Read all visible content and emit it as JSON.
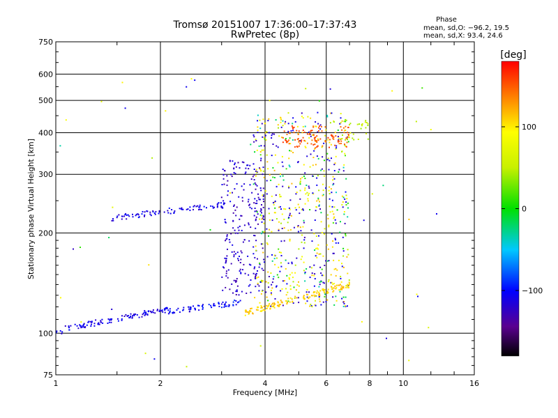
{
  "chart_data": {
    "type": "scatter",
    "title": "Tromsø 20151007 17:36:00–17:37:43",
    "subtitle": "RwPretec (8p)",
    "xlabel": "Frequency [MHz]",
    "ylabel": "Stationary phase Virtual Height [km]",
    "x_scale": "log",
    "y_scale": "log",
    "xlim": [
      1,
      16
    ],
    "ylim": [
      75,
      750
    ],
    "x_ticks": [
      "1",
      "2",
      "4",
      "6",
      "8",
      "10",
      "16"
    ],
    "y_ticks": [
      "75",
      "100",
      "200",
      "300",
      "400",
      "500",
      "600",
      "750"
    ],
    "grid": true,
    "phase_stats": {
      "heading": "Phase",
      "o_line": "mean, sd,O: −96.2, 19.5",
      "x_line": "mean, sd,X:  93.4, 24.6"
    },
    "colorbar": {
      "label": "[deg]",
      "range": [
        -180,
        180
      ],
      "ticks": [
        "100",
        "0",
        "−100"
      ]
    },
    "clusters": [
      {
        "name": "E low trace",
        "x": [
          1.0,
          2.1
        ],
        "y": [
          102,
          118
        ],
        "phase": -110,
        "n": 120,
        "shape": "curve"
      },
      {
        "name": "E rising trace",
        "x": [
          2.1,
          3.4
        ],
        "y": [
          116,
          124
        ],
        "phase": -100,
        "n": 70,
        "shape": "curve"
      },
      {
        "name": "F1 upper trace",
        "x": [
          1.45,
          3.2
        ],
        "y": [
          222,
          245
        ],
        "phase": -110,
        "n": 90,
        "shape": "curve"
      },
      {
        "name": "spread blue",
        "x": [
          3.0,
          4.0
        ],
        "y": [
          130,
          330
        ],
        "phase": -120,
        "n": 220,
        "shape": "box"
      },
      {
        "name": "spread mixed",
        "x": [
          3.7,
          7.0
        ],
        "y": [
          120,
          460
        ],
        "phase": "mixed",
        "n": 650,
        "shape": "box"
      },
      {
        "name": "yellow low trace",
        "x": [
          3.5,
          7.0
        ],
        "y": [
          115,
          140
        ],
        "phase": 110,
        "n": 150,
        "shape": "curve"
      },
      {
        "name": "orange cluster",
        "x": [
          4.5,
          7.0
        ],
        "y": [
          360,
          420
        ],
        "phase": 150,
        "n": 110,
        "shape": "box"
      },
      {
        "name": "scattered green",
        "x": [
          6.6,
          8.0
        ],
        "y": [
          380,
          440
        ],
        "phase": 50,
        "n": 30,
        "shape": "box"
      },
      {
        "name": "isolated points",
        "x": [
          1.0,
          13.0
        ],
        "y": [
          78,
          600
        ],
        "phase": "mixed",
        "n": 60,
        "shape": "box"
      }
    ]
  }
}
